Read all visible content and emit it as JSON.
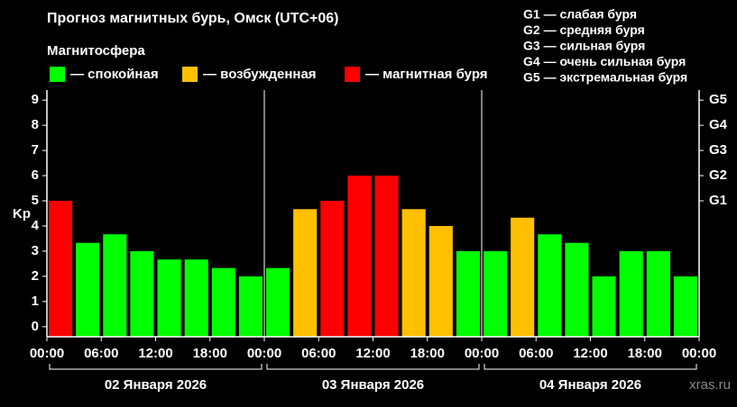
{
  "chart_data": {
    "type": "bar",
    "title": "Прогноз магнитных бурь, Омск (UTC+06)",
    "legend_title": "Магнитосфера",
    "legend": [
      {
        "name": "— спокойная",
        "color": "#00ff00"
      },
      {
        "name": "— возбужденная",
        "color": "#ffc000"
      },
      {
        "name": "— магнитная буря",
        "color": "#ff0000"
      }
    ],
    "storm_levels": [
      "G1 — слабая буря",
      "G2 — средняя буря",
      "G3 — сильная буря",
      "G4 — очень сильная буря",
      "G5 — экстремальная буря"
    ],
    "y_label": "Kp",
    "x": [
      0,
      3,
      6,
      9,
      12,
      15,
      18,
      21,
      24,
      27,
      30,
      33,
      36,
      39,
      42,
      45,
      48,
      51,
      54,
      57,
      60,
      63,
      66,
      69
    ],
    "values": [
      5,
      3.33,
      3.67,
      3,
      2.67,
      2.67,
      2.33,
      2,
      2.33,
      4.67,
      5,
      6,
      6,
      4.67,
      4,
      3,
      3,
      4.33,
      3.67,
      3.33,
      2,
      3,
      3,
      2
    ],
    "colors": [
      "#ff0000",
      "#00ff00",
      "#00ff00",
      "#00ff00",
      "#00ff00",
      "#00ff00",
      "#00ff00",
      "#00ff00",
      "#00ff00",
      "#ffc000",
      "#ff0000",
      "#ff0000",
      "#ff0000",
      "#ffc000",
      "#ffc000",
      "#00ff00",
      "#00ff00",
      "#ffc000",
      "#00ff00",
      "#00ff00",
      "#00ff00",
      "#00ff00",
      "#00ff00",
      "#00ff00"
    ],
    "bar_width": 3,
    "xlim": [
      0,
      72
    ],
    "xticks": [
      {
        "value": 0,
        "label": "00:00"
      },
      {
        "value": 6,
        "label": "06:00"
      },
      {
        "value": 12,
        "label": "12:00"
      },
      {
        "value": 18,
        "label": "18:00"
      },
      {
        "value": 24,
        "label": "00:00"
      },
      {
        "value": 30,
        "label": "06:00"
      },
      {
        "value": 36,
        "label": "12:00"
      },
      {
        "value": 42,
        "label": "18:00"
      },
      {
        "value": 48,
        "label": "00:00"
      },
      {
        "value": 54,
        "label": "06:00"
      },
      {
        "value": 60,
        "label": "12:00"
      },
      {
        "value": 66,
        "label": "18:00"
      },
      {
        "value": 72,
        "label": "00:00"
      }
    ],
    "days": [
      "02 Января 2026",
      "03 Января 2026",
      "04 Января 2026"
    ],
    "ylim": [
      -0.4,
      9.4
    ],
    "yticks": [
      0,
      1,
      2,
      3,
      4,
      5,
      6,
      7,
      8,
      9
    ],
    "y2lim": [
      -0.4,
      9.4
    ],
    "y2ticks": [
      {
        "value": 5,
        "label": "G1"
      },
      {
        "value": 6,
        "label": "G2"
      },
      {
        "value": 7,
        "label": "G3"
      },
      {
        "value": 8,
        "label": "G4"
      },
      {
        "value": 9,
        "label": "G5"
      }
    ],
    "watermark": "xras.ru"
  }
}
